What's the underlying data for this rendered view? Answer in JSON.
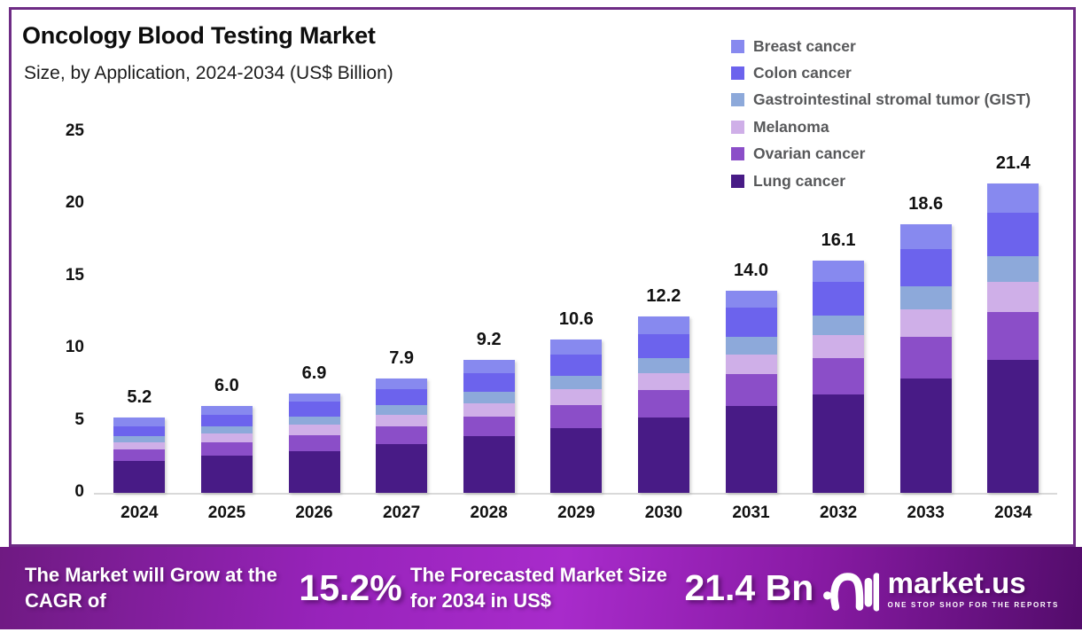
{
  "header": {
    "title": "Oncology Blood Testing Market",
    "subtitle": "Size, by Application, 2024-2034 (US$ Billion)"
  },
  "legend": [
    {
      "label": "Breast cancer",
      "color": "#8789ef"
    },
    {
      "label": "Colon cancer",
      "color": "#6c63ed"
    },
    {
      "label": "Gastrointestinal stromal tumor (GIST)",
      "color": "#8da9da"
    },
    {
      "label": "Melanoma",
      "color": "#cfafe8"
    },
    {
      "label": "Ovarian cancer",
      "color": "#8b4ec8"
    },
    {
      "label": "Lung cancer",
      "color": "#481b86"
    }
  ],
  "chart_data": {
    "type": "bar",
    "stacked": true,
    "title": "Oncology Blood Testing Market Size, by Application, 2024-2034 (US$ Billion)",
    "categories": [
      "2024",
      "2025",
      "2026",
      "2027",
      "2028",
      "2029",
      "2030",
      "2031",
      "2032",
      "2033",
      "2034"
    ],
    "series": [
      {
        "name": "Lung cancer",
        "color": "#481b86",
        "values": [
          2.2,
          2.6,
          2.9,
          3.4,
          3.9,
          4.5,
          5.2,
          6.0,
          6.8,
          7.9,
          9.2
        ]
      },
      {
        "name": "Ovarian cancer",
        "color": "#8b4ec8",
        "values": [
          0.8,
          0.9,
          1.1,
          1.2,
          1.4,
          1.6,
          1.9,
          2.2,
          2.5,
          2.9,
          3.3
        ]
      },
      {
        "name": "Melanoma",
        "color": "#cfafe8",
        "values": [
          0.5,
          0.6,
          0.7,
          0.8,
          0.9,
          1.1,
          1.2,
          1.4,
          1.6,
          1.9,
          2.1
        ]
      },
      {
        "name": "Gastrointestinal stromal tumor (GIST)",
        "color": "#8da9da",
        "values": [
          0.4,
          0.5,
          0.6,
          0.7,
          0.8,
          0.9,
          1.0,
          1.2,
          1.4,
          1.6,
          1.8
        ]
      },
      {
        "name": "Colon cancer",
        "color": "#6c63ed",
        "values": [
          0.7,
          0.8,
          1.0,
          1.1,
          1.3,
          1.5,
          1.7,
          2.0,
          2.3,
          2.6,
          3.0
        ]
      },
      {
        "name": "Breast cancer",
        "color": "#8789ef",
        "values": [
          0.6,
          0.6,
          0.6,
          0.7,
          0.9,
          1.0,
          1.2,
          1.2,
          1.5,
          1.7,
          2.0
        ]
      }
    ],
    "totals_display": [
      "5.2",
      "6.0",
      "6.9",
      "7.9",
      "9.2",
      "10.6",
      "12.2",
      "14.0",
      "16.1",
      "18.6",
      "21.4"
    ],
    "y_ticks": [
      0,
      5,
      10,
      15,
      20,
      25
    ],
    "ylim": [
      0,
      25
    ],
    "xlabel": "",
    "ylabel": "US$ Billion",
    "grid": false,
    "legend_position": "top-right"
  },
  "banner": {
    "cagr_label": "The Market will Grow at the CAGR of",
    "cagr_value": "15.2%",
    "forecast_label": "The Forecasted Market Size for 2034 in US$",
    "forecast_value": "21.4 Bn",
    "brand_name": "market.us",
    "brand_tagline": "ONE STOP SHOP FOR THE REPORTS"
  },
  "colors": {
    "frame_border": "#6e2c85",
    "axis_line": "#d9d9d9",
    "legend_text": "#57585a",
    "banner_gradient_left": "#6f1a82",
    "banner_gradient_mid": "#a82bcb",
    "banner_gradient_right": "#530c6b"
  }
}
